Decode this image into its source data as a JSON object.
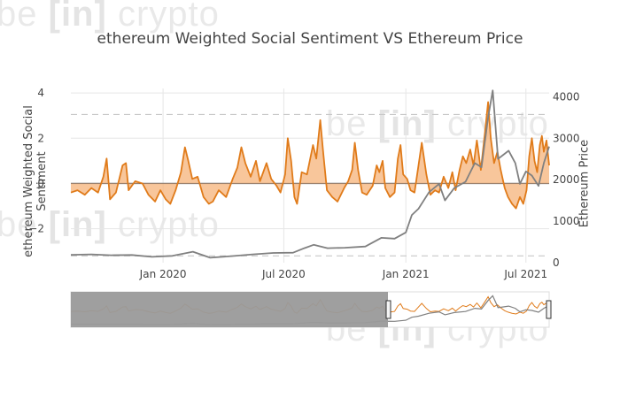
{
  "watermark": {
    "brand_left": "be",
    "brand_mid": "[in]",
    "brand_right": "crypto"
  },
  "chart_data": {
    "type": "line",
    "title": "ethereum Weighted Social Sentiment VS Ethereum Price",
    "ylabel_left": "ethereum Weighted Social Sentiment",
    "ylabel_right": "Ethereum Price",
    "x_ticks": [
      "Jan 2020",
      "Jul 2020",
      "Jan 2021",
      "Jul 2021"
    ],
    "x_range": [
      "2019-08-15",
      "2021-08-05"
    ],
    "y_left": {
      "range": [
        -3.5,
        4.2
      ],
      "ticks": [
        -2,
        0,
        2,
        4
      ],
      "tick_labels": [
        "−2",
        "0",
        "2",
        "4"
      ],
      "dashed_levels": [
        -3.2,
        3.05
      ]
    },
    "y_right": {
      "range": [
        0,
        4200
      ],
      "ticks": [
        0,
        1000,
        2000,
        3000,
        4000
      ],
      "tick_labels": [
        "0",
        "1000",
        "2000",
        "3000",
        "4000"
      ]
    },
    "colors": {
      "sentiment_line": "#e07b1a",
      "sentiment_fill": "#f5b37a",
      "price_line": "#808080",
      "grid": "#e6e6e6",
      "zero": "#666666",
      "range_shade": "#9a9a9a"
    },
    "series": [
      {
        "name": "ethereum Weighted Social Sentiment",
        "axis": "left",
        "points": [
          [
            "2019-08-15",
            -0.4
          ],
          [
            "2019-08-25",
            -0.3
          ],
          [
            "2019-09-05",
            -0.5
          ],
          [
            "2019-09-15",
            -0.2
          ],
          [
            "2019-09-25",
            -0.4
          ],
          [
            "2019-10-03",
            0.3
          ],
          [
            "2019-10-08",
            1.1
          ],
          [
            "2019-10-13",
            -0.7
          ],
          [
            "2019-10-22",
            -0.4
          ],
          [
            "2019-11-01",
            0.8
          ],
          [
            "2019-11-06",
            0.9
          ],
          [
            "2019-11-10",
            -0.3
          ],
          [
            "2019-11-20",
            0.1
          ],
          [
            "2019-12-01",
            0.0
          ],
          [
            "2019-12-10",
            -0.5
          ],
          [
            "2019-12-20",
            -0.8
          ],
          [
            "2019-12-28",
            -0.3
          ],
          [
            "2020-01-05",
            -0.7
          ],
          [
            "2020-01-12",
            -0.9
          ],
          [
            "2020-01-20",
            -0.3
          ],
          [
            "2020-01-28",
            0.5
          ],
          [
            "2020-02-03",
            1.6
          ],
          [
            "2020-02-08",
            1.0
          ],
          [
            "2020-02-14",
            0.2
          ],
          [
            "2020-02-22",
            0.3
          ],
          [
            "2020-03-02",
            -0.6
          ],
          [
            "2020-03-10",
            -0.9
          ],
          [
            "2020-03-16",
            -0.8
          ],
          [
            "2020-03-25",
            -0.3
          ],
          [
            "2020-04-05",
            -0.6
          ],
          [
            "2020-04-15",
            0.2
          ],
          [
            "2020-04-22",
            0.7
          ],
          [
            "2020-04-28",
            1.6
          ],
          [
            "2020-05-04",
            0.9
          ],
          [
            "2020-05-12",
            0.3
          ],
          [
            "2020-05-20",
            1.0
          ],
          [
            "2020-05-26",
            0.1
          ],
          [
            "2020-06-05",
            0.9
          ],
          [
            "2020-06-12",
            0.2
          ],
          [
            "2020-06-20",
            -0.1
          ],
          [
            "2020-06-26",
            -0.4
          ],
          [
            "2020-07-03",
            0.4
          ],
          [
            "2020-07-07",
            2.0
          ],
          [
            "2020-07-12",
            1.0
          ],
          [
            "2020-07-17",
            -0.6
          ],
          [
            "2020-07-21",
            -0.9
          ],
          [
            "2020-07-28",
            0.5
          ],
          [
            "2020-08-05",
            0.4
          ],
          [
            "2020-08-14",
            1.7
          ],
          [
            "2020-08-19",
            1.1
          ],
          [
            "2020-08-25",
            2.8
          ],
          [
            "2020-08-29",
            1.5
          ],
          [
            "2020-09-04",
            -0.3
          ],
          [
            "2020-09-12",
            -0.6
          ],
          [
            "2020-09-20",
            -0.8
          ],
          [
            "2020-09-30",
            -0.2
          ],
          [
            "2020-10-06",
            0.1
          ],
          [
            "2020-10-12",
            0.6
          ],
          [
            "2020-10-16",
            1.8
          ],
          [
            "2020-10-21",
            0.6
          ],
          [
            "2020-10-27",
            -0.4
          ],
          [
            "2020-11-03",
            -0.5
          ],
          [
            "2020-11-12",
            -0.1
          ],
          [
            "2020-11-18",
            0.8
          ],
          [
            "2020-11-22",
            0.5
          ],
          [
            "2020-11-27",
            1.0
          ],
          [
            "2020-12-01",
            -0.2
          ],
          [
            "2020-12-08",
            -0.6
          ],
          [
            "2020-12-15",
            -0.4
          ],
          [
            "2020-12-20",
            1.1
          ],
          [
            "2020-12-24",
            1.7
          ],
          [
            "2020-12-28",
            0.4
          ],
          [
            "2021-01-03",
            0.2
          ],
          [
            "2021-01-08",
            -0.3
          ],
          [
            "2021-01-14",
            -0.4
          ],
          [
            "2021-01-20",
            0.8
          ],
          [
            "2021-01-25",
            1.8
          ],
          [
            "2021-02-01",
            0.4
          ],
          [
            "2021-02-07",
            -0.5
          ],
          [
            "2021-02-14",
            -0.3
          ],
          [
            "2021-02-20",
            -0.4
          ],
          [
            "2021-02-27",
            0.3
          ],
          [
            "2021-03-06",
            -0.2
          ],
          [
            "2021-03-12",
            0.5
          ],
          [
            "2021-03-17",
            -0.3
          ],
          [
            "2021-03-23",
            0.6
          ],
          [
            "2021-03-28",
            1.2
          ],
          [
            "2021-04-02",
            0.9
          ],
          [
            "2021-04-08",
            1.5
          ],
          [
            "2021-04-13",
            0.8
          ],
          [
            "2021-04-18",
            1.9
          ],
          [
            "2021-04-24",
            0.6
          ],
          [
            "2021-04-30",
            2.2
          ],
          [
            "2021-05-05",
            3.6
          ],
          [
            "2021-05-09",
            2.0
          ],
          [
            "2021-05-14",
            0.9
          ],
          [
            "2021-05-19",
            1.4
          ],
          [
            "2021-05-24",
            0.6
          ],
          [
            "2021-05-30",
            -0.2
          ],
          [
            "2021-06-04",
            -0.6
          ],
          [
            "2021-06-10",
            -0.9
          ],
          [
            "2021-06-16",
            -1.1
          ],
          [
            "2021-06-22",
            -0.6
          ],
          [
            "2021-06-27",
            -0.9
          ],
          [
            "2021-07-02",
            -0.3
          ],
          [
            "2021-07-06",
            1.2
          ],
          [
            "2021-07-10",
            2.0
          ],
          [
            "2021-07-14",
            1.0
          ],
          [
            "2021-07-18",
            0.5
          ],
          [
            "2021-07-22",
            1.7
          ],
          [
            "2021-07-25",
            2.1
          ],
          [
            "2021-07-28",
            1.4
          ],
          [
            "2021-08-01",
            1.9
          ],
          [
            "2021-08-05",
            0.8
          ]
        ]
      },
      {
        "name": "Ethereum Price",
        "axis": "right",
        "points": [
          [
            "2019-08-15",
            190
          ],
          [
            "2019-09-15",
            200
          ],
          [
            "2019-10-15",
            180
          ],
          [
            "2019-11-15",
            185
          ],
          [
            "2019-12-15",
            140
          ],
          [
            "2020-01-15",
            165
          ],
          [
            "2020-02-15",
            265
          ],
          [
            "2020-03-12",
            120
          ],
          [
            "2020-04-15",
            160
          ],
          [
            "2020-05-15",
            200
          ],
          [
            "2020-06-15",
            235
          ],
          [
            "2020-07-15",
            240
          ],
          [
            "2020-08-01",
            350
          ],
          [
            "2020-08-15",
            430
          ],
          [
            "2020-09-05",
            350
          ],
          [
            "2020-10-01",
            360
          ],
          [
            "2020-11-01",
            390
          ],
          [
            "2020-11-25",
            600
          ],
          [
            "2020-12-15",
            580
          ],
          [
            "2021-01-01",
            730
          ],
          [
            "2021-01-10",
            1150
          ],
          [
            "2021-01-20",
            1300
          ],
          [
            "2021-02-05",
            1700
          ],
          [
            "2021-02-20",
            1900
          ],
          [
            "2021-03-01",
            1500
          ],
          [
            "2021-03-15",
            1800
          ],
          [
            "2021-04-01",
            1950
          ],
          [
            "2021-04-15",
            2400
          ],
          [
            "2021-04-25",
            2300
          ],
          [
            "2021-05-05",
            3500
          ],
          [
            "2021-05-12",
            4150
          ],
          [
            "2021-05-20",
            2500
          ],
          [
            "2021-05-28",
            2600
          ],
          [
            "2021-06-05",
            2700
          ],
          [
            "2021-06-15",
            2400
          ],
          [
            "2021-06-22",
            1900
          ],
          [
            "2021-07-01",
            2200
          ],
          [
            "2021-07-10",
            2100
          ],
          [
            "2021-07-20",
            1850
          ],
          [
            "2021-07-28",
            2400
          ],
          [
            "2021-08-05",
            2800
          ]
        ]
      }
    ]
  }
}
